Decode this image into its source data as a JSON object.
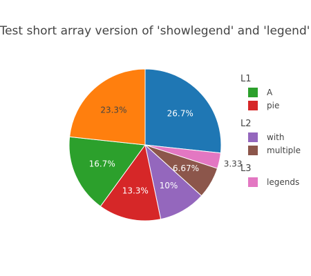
{
  "chart_data": {
    "type": "pie",
    "title": "Test short array version of 'showlegend' and 'legend'",
    "labels": [
      "",
      "",
      "",
      "",
      "",
      "",
      ""
    ],
    "values": [
      26.7,
      3.33,
      6.67,
      10,
      13.3,
      16.7,
      23.3
    ],
    "text_labels": [
      "26.7%",
      "3.33",
      "6.67%",
      "10%",
      "13.3%",
      "16.7%",
      "23.3%"
    ],
    "colors": [
      "#1f77b4",
      "#e377c2",
      "#8c564b",
      "#9467bd",
      "#d62728",
      "#2ca02c",
      "#ff7f0e"
    ],
    "label_colors": [
      "#ffffff",
      "#444444",
      "#ffffff",
      "#ffffff",
      "#ffffff",
      "#ffffff",
      "#444444"
    ],
    "direction": "clockwise",
    "start_angle_deg": 0,
    "legend": {
      "placement": "right",
      "groups": [
        {
          "title": "L1",
          "items": [
            {
              "label": "A",
              "color": "#2ca02c"
            },
            {
              "label": "pie",
              "color": "#d62728"
            }
          ]
        },
        {
          "title": "L2",
          "items": [
            {
              "label": "with",
              "color": "#9467bd"
            },
            {
              "label": "multiple",
              "color": "#8c564b"
            }
          ]
        },
        {
          "title": "L3",
          "items": [
            {
              "label": "legends",
              "color": "#e377c2"
            }
          ]
        }
      ]
    }
  }
}
